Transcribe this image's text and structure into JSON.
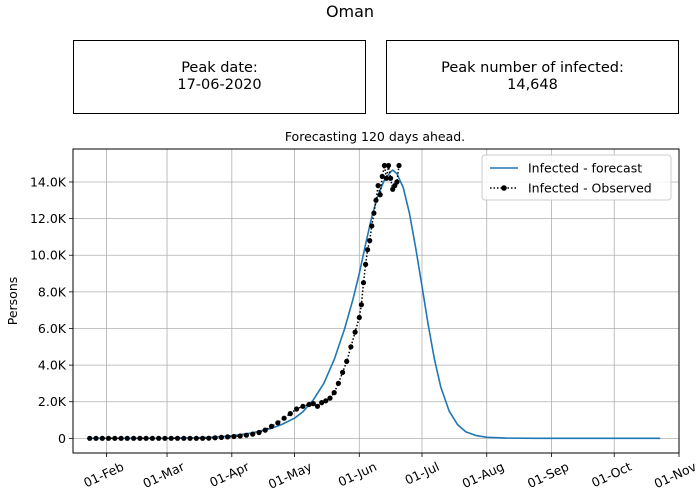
{
  "header": {
    "title": "Oman",
    "peak_date_label": "Peak date:",
    "peak_date_value": "17-06-2020",
    "peak_infected_label": "Peak number of infected:",
    "peak_infected_value": "14,648"
  },
  "chart_data": {
    "type": "line",
    "title": "Forecasting 120 days ahead.",
    "xlabel": "",
    "ylabel": "Persons",
    "x_axis": {
      "type": "date",
      "range": [
        "2020-01-16",
        "2020-11-01"
      ],
      "ticks": [
        {
          "date": "2020-02-01",
          "label": "01-Feb"
        },
        {
          "date": "2020-03-01",
          "label": "01-Mar"
        },
        {
          "date": "2020-04-01",
          "label": "01-Apr"
        },
        {
          "date": "2020-05-01",
          "label": "01-May"
        },
        {
          "date": "2020-06-01",
          "label": "01-Jun"
        },
        {
          "date": "2020-07-01",
          "label": "01-Jul"
        },
        {
          "date": "2020-08-01",
          "label": "01-Aug"
        },
        {
          "date": "2020-09-01",
          "label": "01-Sep"
        },
        {
          "date": "2020-10-01",
          "label": "01-Oct"
        },
        {
          "date": "2020-11-01",
          "label": "01-Nov"
        }
      ]
    },
    "y_axis": {
      "range": [
        -800,
        15800
      ],
      "ticks": [
        {
          "value": 0,
          "label": "0"
        },
        {
          "value": 2000,
          "label": "2.0K"
        },
        {
          "value": 4000,
          "label": "4.0K"
        },
        {
          "value": 6000,
          "label": "6.0K"
        },
        {
          "value": 8000,
          "label": "8.0K"
        },
        {
          "value": 10000,
          "label": "10.0K"
        },
        {
          "value": 12000,
          "label": "12.0K"
        },
        {
          "value": 14000,
          "label": "14.0K"
        }
      ]
    },
    "grid": true,
    "legend_position": "top-right",
    "series": [
      {
        "name": "Infected - forecast",
        "style": "solid-line",
        "color": "#1f77b4",
        "points": [
          [
            "2020-01-25",
            0
          ],
          [
            "2020-02-15",
            0
          ],
          [
            "2020-03-01",
            5
          ],
          [
            "2020-03-15",
            30
          ],
          [
            "2020-03-25",
            80
          ],
          [
            "2020-04-01",
            140
          ],
          [
            "2020-04-10",
            280
          ],
          [
            "2020-04-20",
            550
          ],
          [
            "2020-04-25",
            760
          ],
          [
            "2020-05-01",
            1100
          ],
          [
            "2020-05-05",
            1450
          ],
          [
            "2020-05-10",
            2100
          ],
          [
            "2020-05-15",
            3000
          ],
          [
            "2020-05-20",
            4300
          ],
          [
            "2020-05-25",
            6000
          ],
          [
            "2020-05-29",
            7600
          ],
          [
            "2020-06-01",
            9000
          ],
          [
            "2020-06-04",
            10600
          ],
          [
            "2020-06-07",
            12100
          ],
          [
            "2020-06-10",
            13300
          ],
          [
            "2020-06-13",
            14100
          ],
          [
            "2020-06-16",
            14550
          ],
          [
            "2020-06-17",
            14648
          ],
          [
            "2020-06-19",
            14450
          ],
          [
            "2020-06-22",
            13700
          ],
          [
            "2020-06-25",
            12300
          ],
          [
            "2020-06-28",
            10400
          ],
          [
            "2020-07-01",
            8300
          ],
          [
            "2020-07-04",
            6200
          ],
          [
            "2020-07-07",
            4300
          ],
          [
            "2020-07-10",
            2800
          ],
          [
            "2020-07-14",
            1500
          ],
          [
            "2020-07-18",
            750
          ],
          [
            "2020-07-22",
            350
          ],
          [
            "2020-07-27",
            150
          ],
          [
            "2020-08-01",
            60
          ],
          [
            "2020-08-10",
            15
          ],
          [
            "2020-08-25",
            0
          ],
          [
            "2020-09-15",
            0
          ],
          [
            "2020-10-10",
            0
          ],
          [
            "2020-10-23",
            0
          ]
        ]
      },
      {
        "name": "Infected - Observed",
        "style": "dotted-line-with-markers",
        "color": "#000000",
        "points": [
          [
            "2020-01-24",
            0
          ],
          [
            "2020-01-27",
            0
          ],
          [
            "2020-01-30",
            0
          ],
          [
            "2020-02-02",
            0
          ],
          [
            "2020-02-05",
            0
          ],
          [
            "2020-02-08",
            0
          ],
          [
            "2020-02-11",
            0
          ],
          [
            "2020-02-14",
            0
          ],
          [
            "2020-02-17",
            0
          ],
          [
            "2020-02-20",
            0
          ],
          [
            "2020-02-23",
            0
          ],
          [
            "2020-02-26",
            0
          ],
          [
            "2020-02-29",
            0
          ],
          [
            "2020-03-03",
            0
          ],
          [
            "2020-03-06",
            0
          ],
          [
            "2020-03-09",
            0
          ],
          [
            "2020-03-12",
            0
          ],
          [
            "2020-03-15",
            0
          ],
          [
            "2020-03-18",
            0
          ],
          [
            "2020-03-21",
            10
          ],
          [
            "2020-03-24",
            30
          ],
          [
            "2020-03-27",
            50
          ],
          [
            "2020-03-30",
            80
          ],
          [
            "2020-04-02",
            100
          ],
          [
            "2020-04-05",
            130
          ],
          [
            "2020-04-08",
            170
          ],
          [
            "2020-04-11",
            230
          ],
          [
            "2020-04-14",
            320
          ],
          [
            "2020-04-17",
            450
          ],
          [
            "2020-04-20",
            650
          ],
          [
            "2020-04-23",
            850
          ],
          [
            "2020-04-26",
            1100
          ],
          [
            "2020-04-29",
            1350
          ],
          [
            "2020-05-02",
            1600
          ],
          [
            "2020-05-05",
            1750
          ],
          [
            "2020-05-08",
            1850
          ],
          [
            "2020-05-10",
            1900
          ],
          [
            "2020-05-12",
            1750
          ],
          [
            "2020-05-14",
            1950
          ],
          [
            "2020-05-16",
            2050
          ],
          [
            "2020-05-18",
            2200
          ],
          [
            "2020-05-20",
            2500
          ],
          [
            "2020-05-22",
            3000
          ],
          [
            "2020-05-24",
            3600
          ],
          [
            "2020-05-26",
            4200
          ],
          [
            "2020-05-28",
            5000
          ],
          [
            "2020-05-30",
            5800
          ],
          [
            "2020-06-01",
            6600
          ],
          [
            "2020-06-02",
            7300
          ],
          [
            "2020-06-03",
            8500
          ],
          [
            "2020-06-04",
            9500
          ],
          [
            "2020-06-05",
            10300
          ],
          [
            "2020-06-06",
            10800
          ],
          [
            "2020-06-07",
            11600
          ],
          [
            "2020-06-08",
            12300
          ],
          [
            "2020-06-09",
            13000
          ],
          [
            "2020-06-10",
            13800
          ],
          [
            "2020-06-11",
            13300
          ],
          [
            "2020-06-12",
            14300
          ],
          [
            "2020-06-13",
            14900
          ],
          [
            "2020-06-14",
            14200
          ],
          [
            "2020-06-15",
            14900
          ],
          [
            "2020-06-16",
            14200
          ],
          [
            "2020-06-17",
            13600
          ],
          [
            "2020-06-18",
            13800
          ],
          [
            "2020-06-19",
            14000
          ],
          [
            "2020-06-20",
            14900
          ]
        ]
      }
    ]
  }
}
